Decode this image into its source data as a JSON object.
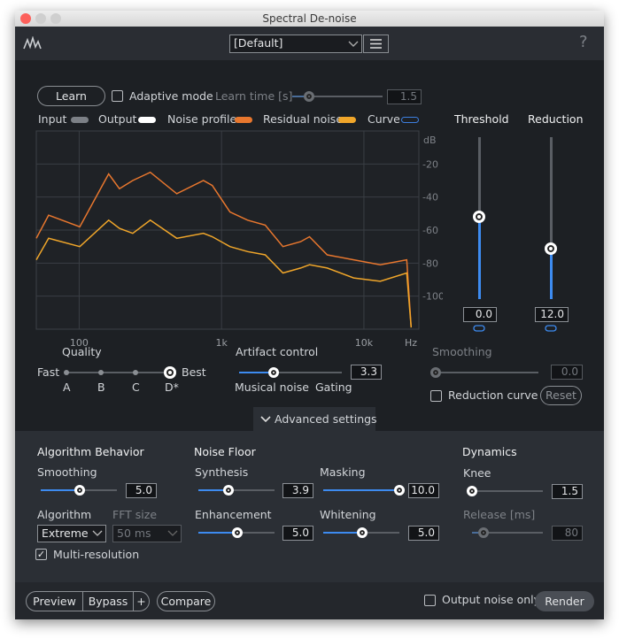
{
  "window": {
    "title": "Spectral De-noise"
  },
  "toolbar": {
    "preset": "[Default]",
    "help": "?"
  },
  "learn": {
    "button": "Learn",
    "adaptive_mode": "Adaptive mode",
    "learn_time_label": "Learn time [s]",
    "learn_time": "1.5"
  },
  "chart_data": {
    "type": "line",
    "legend": [
      {
        "name": "Input",
        "color": "#7c8086"
      },
      {
        "name": "Output",
        "color": "#ffffff"
      },
      {
        "name": "Curve",
        "color": "#3d7fe0"
      }
    ],
    "x": [
      50,
      61,
      101,
      161,
      192,
      238,
      316,
      485,
      746,
      861,
      1146,
      1524,
      2027,
      2700,
      3596,
      4149,
      5520,
      8473,
      13020,
      20000,
      21470
    ],
    "series": [
      {
        "name": "Noise profile",
        "color": "#e8772e",
        "values": [
          -65,
          -51,
          -58,
          -26,
          -35,
          -30,
          -25,
          -38,
          -30,
          -33,
          -49,
          -54,
          -57,
          -70,
          -67,
          -64,
          -75,
          -78,
          -81,
          -78,
          -119
        ]
      },
      {
        "name": "Residual noise",
        "color": "#f0a62a",
        "values": [
          -78,
          -65,
          -70,
          -54,
          -59,
          -62,
          -54,
          -65,
          -62,
          -64,
          -70,
          -73,
          -75,
          -86,
          -83,
          -81,
          -83,
          -89,
          -91,
          -86,
          -119
        ]
      }
    ],
    "xlim": [
      50,
      22000
    ],
    "log_x": true,
    "xticks": [
      100,
      {
        "value": 1000,
        "label": "1k"
      },
      {
        "value": 10000,
        "label": "10k"
      }
    ],
    "x_label": "Hz",
    "y_label": "dB",
    "ylim": [
      -120,
      0
    ],
    "yticks": [
      -20,
      -40,
      -60,
      -80,
      -100
    ],
    "grid": true
  },
  "quality": {
    "label": "Quality",
    "fast": "Fast",
    "best": "Best",
    "steps": [
      "A",
      "B",
      "C",
      "D*"
    ]
  },
  "artifact_control": {
    "label": "Artifact control",
    "value": "3.3",
    "left": "Musical noise",
    "right": "Gating"
  },
  "smoothing": {
    "label": "Smoothing",
    "value": "0.0"
  },
  "reduction_curve": "Reduction curve",
  "reset": "Reset",
  "threshold": {
    "label": "Threshold",
    "value": "0.0"
  },
  "reduction": {
    "label": "Reduction",
    "value": "12.0"
  },
  "advanced": "Advanced settings",
  "algorithm_behavior": {
    "title": "Algorithm Behavior",
    "smoothing_label": "Smoothing",
    "smoothing": "5.0",
    "algorithm_label": "Algorithm",
    "algorithm": "Extreme",
    "fft_label": "FFT size",
    "fft": "50 ms",
    "multi_resolution": "Multi-resolution"
  },
  "noise_floor": {
    "title": "Noise Floor",
    "synthesis_label": "Synthesis",
    "synthesis": "3.9",
    "masking_label": "Masking",
    "masking": "10.0",
    "enhancement_label": "Enhancement",
    "enhancement": "5.0",
    "whitening_label": "Whitening",
    "whitening": "5.0"
  },
  "dynamics": {
    "title": "Dynamics",
    "knee_label": "Knee",
    "knee": "1.5",
    "release_label": "Release [ms]",
    "release": "80"
  },
  "footer": {
    "preview": "Preview",
    "bypass": "Bypass",
    "plus": "+",
    "compare": "Compare",
    "output_noise_only": "Output noise only",
    "render": "Render"
  }
}
